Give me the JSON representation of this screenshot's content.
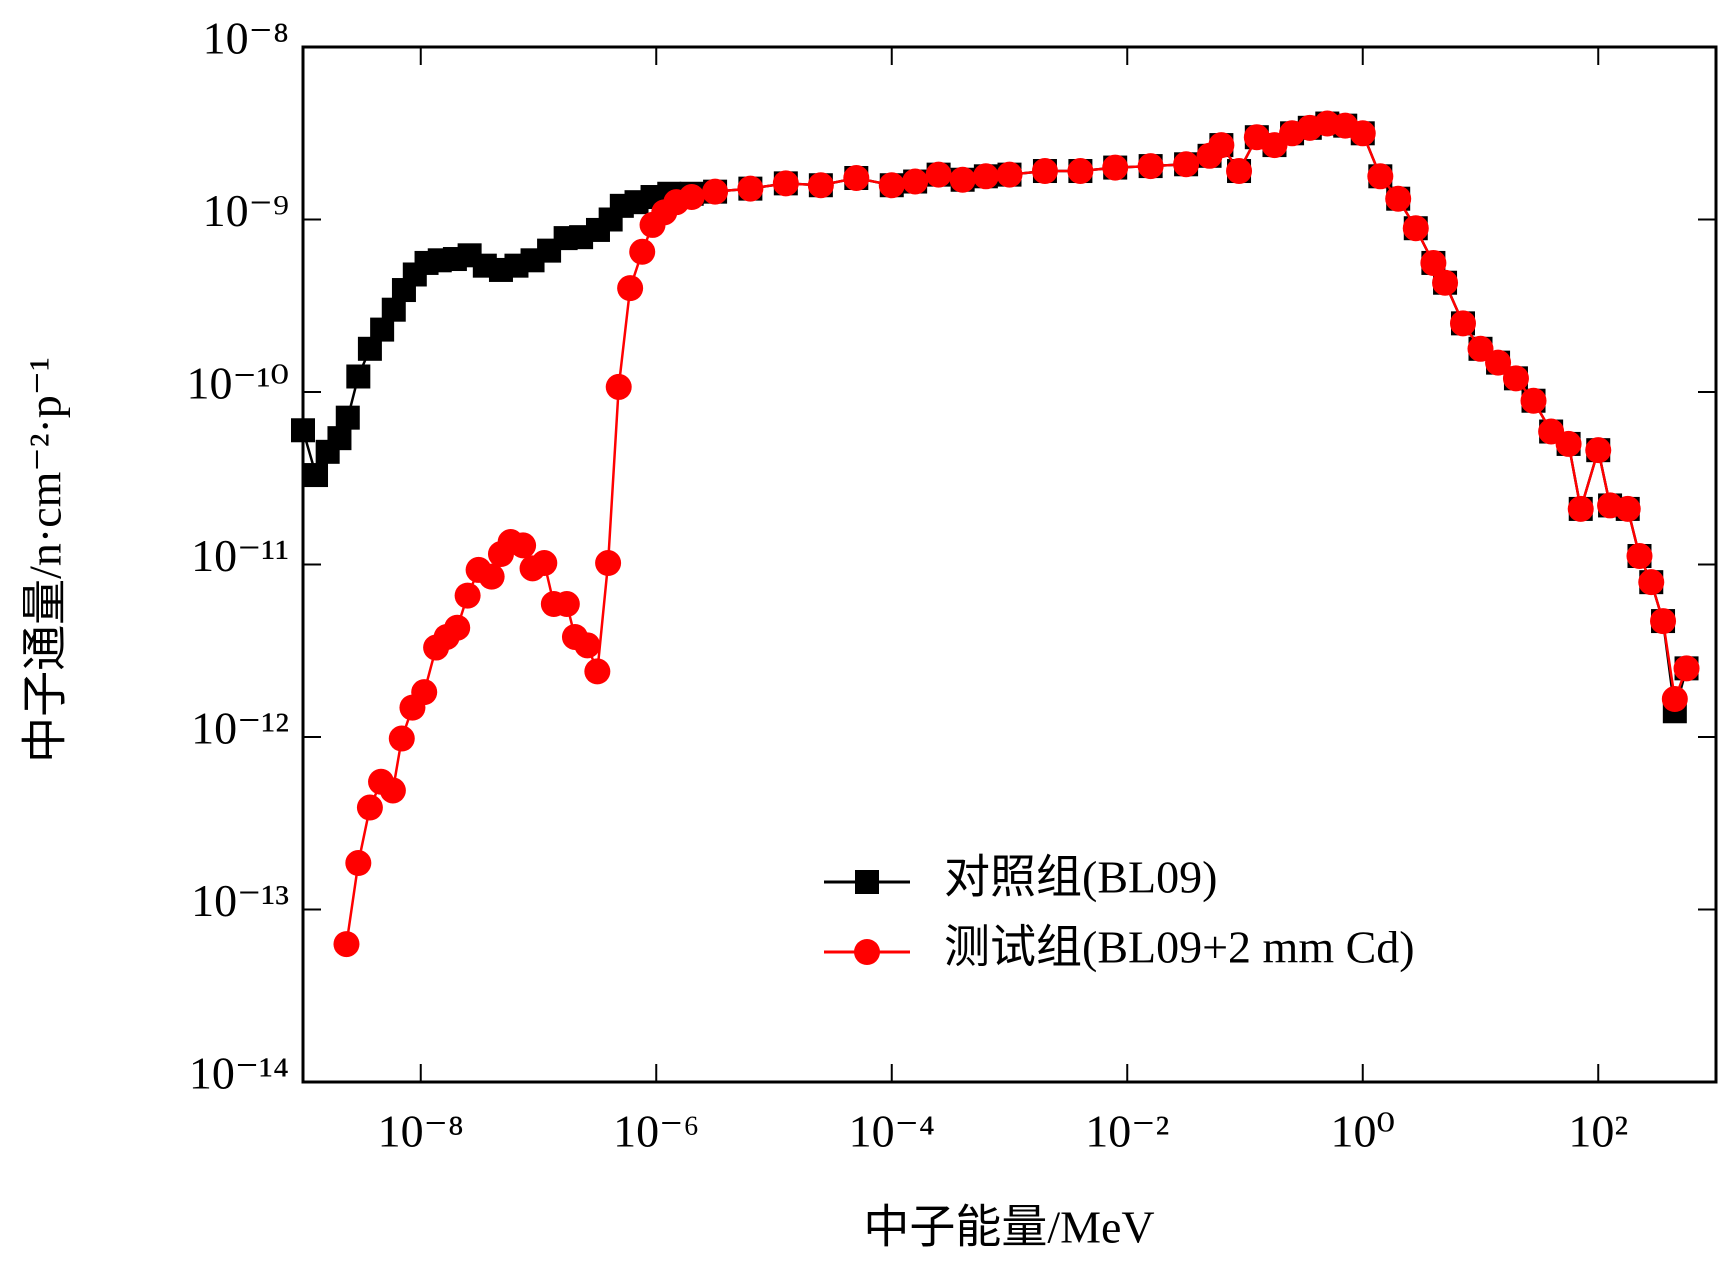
{
  "chart_data": {
    "type": "line",
    "xlabel": "中子能量/MeV",
    "ylabel": "中子通量/n·cm⁻²·p⁻¹",
    "xscale": "log",
    "yscale": "log",
    "xlim": [
      1e-09,
      1000
    ],
    "ylim": [
      1e-14,
      1e-08
    ],
    "xticks": [
      {
        "value": 1e-08,
        "label": "10⁻⁸"
      },
      {
        "value": 1e-06,
        "label": "10⁻⁶"
      },
      {
        "value": 0.0001,
        "label": "10⁻⁴"
      },
      {
        "value": 0.01,
        "label": "10⁻²"
      },
      {
        "value": 1,
        "label": "10⁰"
      },
      {
        "value": 100,
        "label": "10²"
      }
    ],
    "yticks": [
      {
        "value": 1e-14,
        "label": "10⁻¹⁴"
      },
      {
        "value": 1e-13,
        "label": "10⁻¹³"
      },
      {
        "value": 1e-12,
        "label": "10⁻¹²"
      },
      {
        "value": 1e-11,
        "label": "10⁻¹¹"
      },
      {
        "value": 1e-10,
        "label": "10⁻¹⁰"
      },
      {
        "value": 1e-09,
        "label": "10⁻⁹"
      },
      {
        "value": 1e-08,
        "label": "10⁻⁸"
      }
    ],
    "legend": "lower right",
    "series": [
      {
        "name": "对照组(BL09)",
        "color": "#000000",
        "marker": "square",
        "x": [
          1e-09,
          1.29e-09,
          1.62e-09,
          2.04e-09,
          2.4e-09,
          2.95e-09,
          3.7e-09,
          4.7e-09,
          5.9e-09,
          7.2e-09,
          8.9e-09,
          1.12e-08,
          1.45e-08,
          1.95e-08,
          2.6e-08,
          3.5e-08,
          4.8e-08,
          6.5e-08,
          8.9e-08,
          1.23e-07,
          1.7e-07,
          2.3e-07,
          3.2e-07,
          4.1e-07,
          5.1e-07,
          6.8e-07,
          9.3e-07,
          1.29e-06,
          2e-06,
          3.16e-06,
          6.3e-06,
          1.26e-05,
          2.5e-05,
          5e-05,
          0.0001,
          0.000158,
          0.00025,
          0.0004,
          0.00063,
          0.001,
          0.002,
          0.004,
          0.0079,
          0.0158,
          0.0316,
          0.05,
          0.063,
          0.089,
          0.126,
          0.178,
          0.251,
          0.355,
          0.5,
          0.71,
          1,
          1.41,
          2.0,
          2.82,
          3.98,
          5.0,
          7.1,
          10,
          14.1,
          20,
          28.2,
          39.8,
          56,
          71,
          100,
          126,
          178,
          224,
          282,
          355,
          447,
          562
        ],
        "values": [
          6e-11,
          3.3e-11,
          4.5e-11,
          5.4e-11,
          7.1e-11,
          1.23e-10,
          1.78e-10,
          2.3e-10,
          3e-10,
          3.9e-10,
          4.8e-10,
          5.6e-10,
          5.8e-10,
          5.9e-10,
          6.2e-10,
          5.4e-10,
          5.1e-10,
          5.4e-10,
          5.8e-10,
          6.6e-10,
          7.8e-10,
          7.9e-10,
          8.7e-10,
          1e-09,
          1.2e-09,
          1.26e-09,
          1.35e-09,
          1.41e-09,
          1.41e-09,
          1.45e-09,
          1.51e-09,
          1.62e-09,
          1.58e-09,
          1.74e-09,
          1.58e-09,
          1.66e-09,
          1.82e-09,
          1.7e-09,
          1.78e-09,
          1.82e-09,
          1.91e-09,
          1.91e-09,
          2e-09,
          2.04e-09,
          2.09e-09,
          2.34e-09,
          2.7e-09,
          1.91e-09,
          3e-09,
          2.7e-09,
          3.16e-09,
          3.4e-09,
          3.6e-09,
          3.5e-09,
          3.16e-09,
          1.78e-09,
          1.32e-09,
          8.9e-10,
          5.6e-10,
          4.3e-10,
          2.5e-10,
          1.78e-10,
          1.48e-10,
          1.2e-10,
          8.9e-11,
          5.9e-11,
          5e-11,
          2.1e-11,
          4.6e-11,
          2.2e-11,
          2.1e-11,
          1.12e-11,
          7.9e-12,
          4.7e-12,
          1.41e-12,
          2.5e-12
        ]
      },
      {
        "name": "测试组(BL09+2 mm Cd)",
        "color": "#ff0000",
        "marker": "circle",
        "x": [
          2.34e-09,
          2.95e-09,
          3.7e-09,
          4.6e-09,
          5.8e-09,
          6.9e-09,
          8.5e-09,
          1.07e-08,
          1.35e-08,
          1.66e-08,
          2.04e-08,
          2.5e-08,
          3.1e-08,
          4e-08,
          4.8e-08,
          5.8e-08,
          7.4e-08,
          8.9e-08,
          1.12e-07,
          1.35e-07,
          1.74e-07,
          2.04e-07,
          2.6e-07,
          3.16e-07,
          3.9e-07,
          4.8e-07,
          6e-07,
          7.6e-07,
          9.3e-07,
          1.17e-06,
          1.48e-06,
          2e-06,
          3.16e-06,
          6.3e-06,
          1.26e-05,
          2.5e-05,
          5e-05,
          0.0001,
          0.000158,
          0.00025,
          0.0004,
          0.00063,
          0.001,
          0.002,
          0.004,
          0.0079,
          0.0158,
          0.0316,
          0.05,
          0.063,
          0.089,
          0.126,
          0.178,
          0.251,
          0.355,
          0.5,
          0.71,
          1,
          1.41,
          2.0,
          2.82,
          3.98,
          5.0,
          7.1,
          10,
          14.1,
          20,
          28.2,
          39.8,
          56,
          71,
          100,
          126,
          178,
          224,
          282,
          355,
          447,
          562
        ],
        "values": [
          6.3e-14,
          1.86e-13,
          3.9e-13,
          5.5e-13,
          4.9e-13,
          9.8e-13,
          1.48e-12,
          1.82e-12,
          3.3e-12,
          3.8e-12,
          4.3e-12,
          6.6e-12,
          9.3e-12,
          8.5e-12,
          1.15e-11,
          1.35e-11,
          1.29e-11,
          9.5e-12,
          1.02e-11,
          5.9e-12,
          5.9e-12,
          3.8e-12,
          3.4e-12,
          2.4e-12,
          1.02e-11,
          1.07e-10,
          4e-10,
          6.5e-10,
          9.3e-10,
          1.1e-09,
          1.26e-09,
          1.35e-09,
          1.45e-09,
          1.51e-09,
          1.62e-09,
          1.58e-09,
          1.74e-09,
          1.58e-09,
          1.66e-09,
          1.82e-09,
          1.7e-09,
          1.78e-09,
          1.82e-09,
          1.91e-09,
          1.91e-09,
          2e-09,
          2.04e-09,
          2.09e-09,
          2.34e-09,
          2.7e-09,
          1.91e-09,
          3e-09,
          2.7e-09,
          3.16e-09,
          3.4e-09,
          3.6e-09,
          3.5e-09,
          3.16e-09,
          1.78e-09,
          1.32e-09,
          8.9e-10,
          5.6e-10,
          4.3e-10,
          2.5e-10,
          1.78e-10,
          1.48e-10,
          1.2e-10,
          8.9e-11,
          5.9e-11,
          5e-11,
          2.1e-11,
          4.6e-11,
          2.2e-11,
          2.1e-11,
          1.12e-11,
          7.9e-12,
          4.7e-12,
          1.66e-12,
          2.5e-12
        ]
      }
    ]
  }
}
